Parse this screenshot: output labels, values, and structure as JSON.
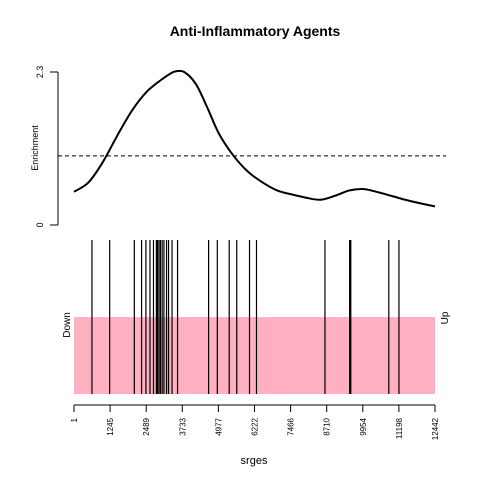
{
  "chart_data": {
    "type": "line",
    "title": "Anti-Inflammatory Agents",
    "xlabel": "srges",
    "ylabel": "Enrichment",
    "xlim": [
      1,
      12442
    ],
    "ylim": [
      0,
      2.3
    ],
    "y_ticks": [
      "0",
      "2.3"
    ],
    "x_ticks": [
      "1",
      "1245",
      "2489",
      "3733",
      "4977",
      "6222",
      "7466",
      "8710",
      "9954",
      "11198",
      "12442"
    ],
    "x_tick_values": [
      1,
      1245,
      2489,
      3733,
      4977,
      6222,
      7466,
      8710,
      9954,
      11198,
      12442
    ],
    "threshold": 1.04,
    "curve": {
      "x": [
        1,
        500,
        1000,
        1500,
        2000,
        2500,
        3000,
        3300,
        3500,
        3800,
        4200,
        4600,
        5000,
        5500,
        6000,
        6500,
        7000,
        7500,
        8000,
        8500,
        9000,
        9500,
        10000,
        10500,
        11000,
        11500,
        12000,
        12442
      ],
      "y": [
        0.5,
        0.64,
        0.95,
        1.35,
        1.72,
        2.0,
        2.18,
        2.27,
        2.31,
        2.3,
        2.12,
        1.76,
        1.37,
        1.04,
        0.8,
        0.64,
        0.52,
        0.46,
        0.41,
        0.38,
        0.44,
        0.52,
        0.54,
        0.49,
        0.43,
        0.37,
        0.32,
        0.28
      ]
    },
    "hits": [
      620,
      1230,
      2080,
      2330,
      2480,
      2620,
      2740,
      2840,
      2880,
      2930,
      2980,
      3040,
      3100,
      3190,
      3260,
      3380,
      3570,
      4640,
      4940,
      5350,
      5610,
      6050,
      6290,
      8650,
      9500,
      9520,
      9540,
      10850,
      11200
    ],
    "bar_color": "#FFB0C1",
    "left_label": "Down",
    "right_label": "Up"
  }
}
